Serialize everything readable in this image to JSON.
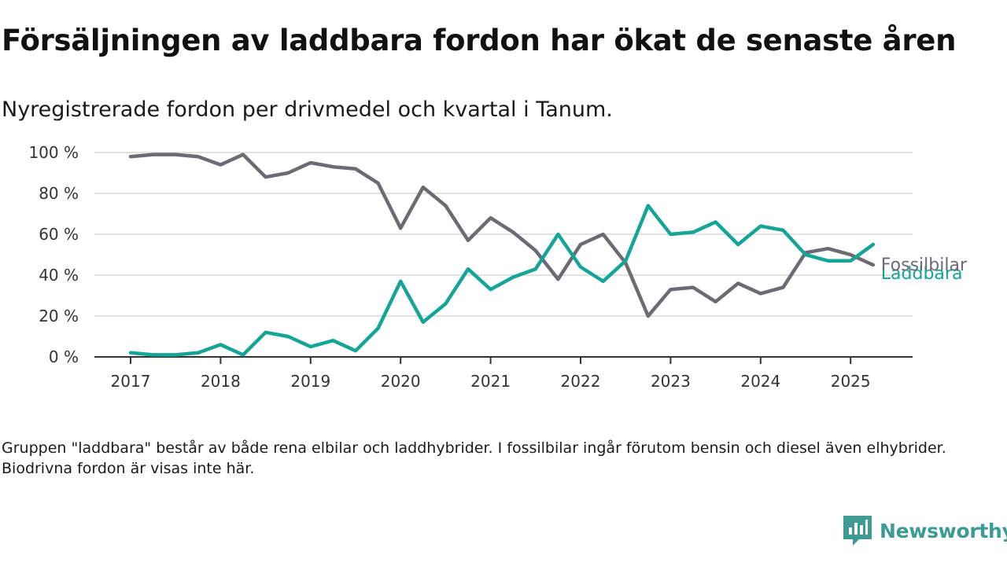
{
  "header": {
    "title": "Försäljningen av laddbara fordon har ökat de senaste åren",
    "subtitle": "Nyregistrerade fordon per drivmedel och kvartal i Tanum."
  },
  "footer": {
    "note": "Gruppen \"laddbara\" består av både rena elbilar och laddhybrider. I fossilbilar ingår förutom bensin och diesel även elhybrider. Biodrivna fordon är visas inte här.",
    "brand": "Newsworthy",
    "brand_icon": "newsworthy-logo-icon"
  },
  "chart_data": {
    "type": "line",
    "x_unit": "quarter",
    "x": [
      "2017 Q1",
      "2017 Q2",
      "2017 Q3",
      "2017 Q4",
      "2018 Q1",
      "2018 Q2",
      "2018 Q3",
      "2018 Q4",
      "2019 Q1",
      "2019 Q2",
      "2019 Q3",
      "2019 Q4",
      "2020 Q1",
      "2020 Q2",
      "2020 Q3",
      "2020 Q4",
      "2021 Q1",
      "2021 Q2",
      "2021 Q3",
      "2021 Q4",
      "2022 Q1",
      "2022 Q2",
      "2022 Q3",
      "2022 Q4",
      "2023 Q1",
      "2023 Q2",
      "2023 Q3",
      "2023 Q4",
      "2024 Q1",
      "2024 Q2",
      "2024 Q3",
      "2024 Q4",
      "2025 Q1",
      "2025 Q2"
    ],
    "series": [
      {
        "name": "Fossilbilar",
        "color": "#6d6a72",
        "values": [
          98,
          99,
          99,
          98,
          94,
          99,
          88,
          90,
          95,
          93,
          92,
          85,
          63,
          83,
          74,
          57,
          68,
          61,
          52,
          38,
          55,
          60,
          46,
          20,
          33,
          34,
          27,
          36,
          31,
          34,
          51,
          53,
          50,
          45
        ]
      },
      {
        "name": "Laddbara",
        "color": "#14a597",
        "values": [
          2,
          1,
          1,
          2,
          6,
          1,
          12,
          10,
          5,
          8,
          3,
          14,
          37,
          17,
          26,
          43,
          33,
          39,
          43,
          60,
          44,
          37,
          47,
          74,
          60,
          61,
          66,
          55,
          64,
          62,
          50,
          47,
          47,
          55
        ]
      }
    ],
    "x_ticks": [
      "2017",
      "2018",
      "2019",
      "2020",
      "2021",
      "2022",
      "2023",
      "2024",
      "2025"
    ],
    "y_ticks": [
      "0 %",
      "20 %",
      "40 %",
      "60 %",
      "80 %",
      "100 %"
    ],
    "ylim": [
      0,
      100
    ],
    "grid": true,
    "legend": "direct labels at line ends (right)"
  }
}
